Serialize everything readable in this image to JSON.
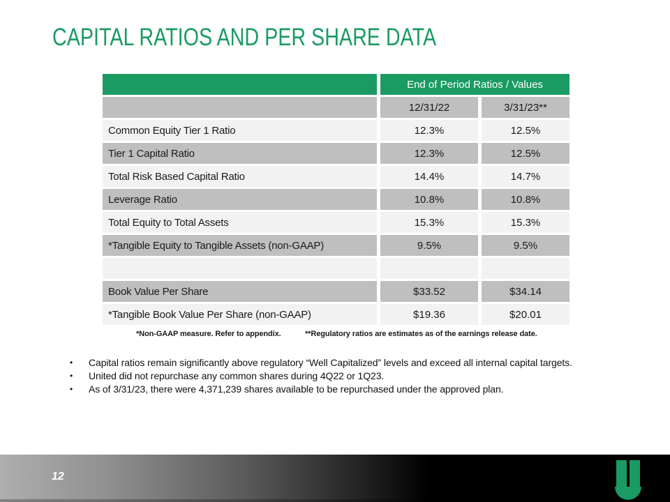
{
  "slide": {
    "title": "CAPITAL RATIOS AND PER SHARE DATA",
    "page_number": "12"
  },
  "table": {
    "header": "End of Period Ratios / Values",
    "columns": [
      "12/31/22",
      "3/31/23**"
    ],
    "rows": [
      {
        "label": "Common Equity Tier 1 Ratio",
        "v1": "12.3%",
        "v2": "12.5%"
      },
      {
        "label": "Tier 1 Capital Ratio",
        "v1": "12.3%",
        "v2": "12.5%"
      },
      {
        "label": "Total Risk Based Capital Ratio",
        "v1": "14.4%",
        "v2": "14.7%"
      },
      {
        "label": "Leverage Ratio",
        "v1": "10.8%",
        "v2": "10.8%"
      },
      {
        "label": "Total Equity to Total Assets",
        "v1": "15.3%",
        "v2": "15.3%"
      },
      {
        "label": "*Tangible Equity to Tangible Assets (non-GAAP)",
        "v1": "9.5%",
        "v2": "9.5%"
      },
      {
        "label": "Book Value Per Share",
        "v1": "$33.52",
        "v2": "$34.14"
      },
      {
        "label": "*Tangible Book Value Per Share (non-GAAP)",
        "v1": "$19.36",
        "v2": "$20.01"
      }
    ]
  },
  "footnotes": {
    "left": "*Non-GAAP measure.  Refer to appendix.",
    "right": "**Regulatory ratios are estimates as of the earnings release date."
  },
  "bullets": [
    "Capital ratios remain significantly above regulatory “Well Capitalized” levels and exceed all internal capital targets.",
    "United did not repurchase any common shares during 4Q22 or 1Q23.",
    "As of 3/31/23, there were 4,371,239 shares available to be repurchased under the approved plan."
  ],
  "colors": {
    "brand_green": "#1a9b63",
    "row_gray": "#bfbfbf",
    "row_light": "#f2f2f2",
    "footer_gradient_start": "#aeaeae",
    "footer_gradient_end": "#000000"
  },
  "logo": {
    "name": "united-bankshares-u-logo"
  }
}
